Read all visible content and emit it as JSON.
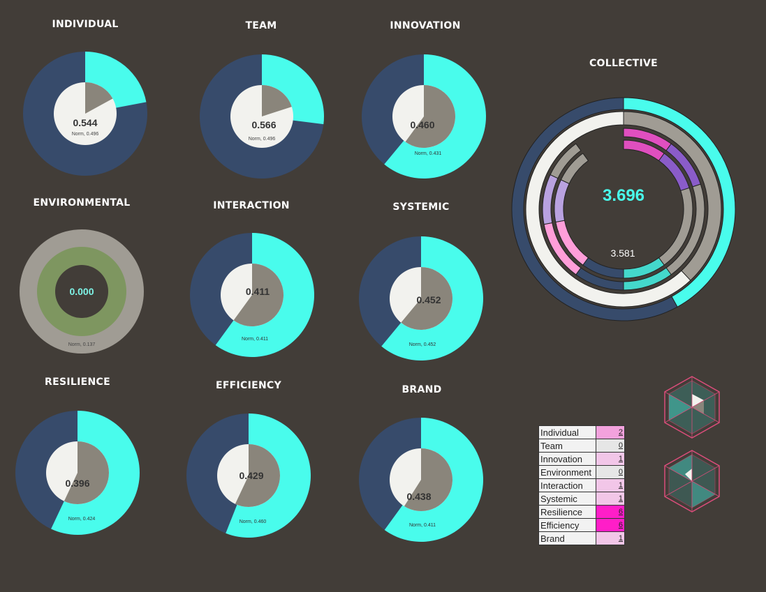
{
  "colors": {
    "background": "#423d38",
    "navy": "#374b6b",
    "cyan": "#49fcec",
    "taupe": "#8a857b",
    "white": "#f2f2ee",
    "olive": "#7e9660",
    "gray_ring": "#a09c94",
    "pink": "#ff9ed9",
    "magenta": "#e04fbf",
    "violet": "#8a5cc9",
    "lavender": "#b9a2e0",
    "teal": "#44d8cc"
  },
  "chart_data": [
    {
      "type": "pie",
      "title": "INDIVIDUAL",
      "value": "0.544",
      "norm": "Norm, 0.496",
      "outer_fraction": 0.22,
      "inner_fraction": 0.17
    },
    {
      "type": "pie",
      "title": "TEAM",
      "value": "0.566",
      "norm": "Norm, 0.496",
      "outer_fraction": 0.27,
      "inner_fraction": 0.2
    },
    {
      "type": "pie",
      "title": "INNOVATION",
      "value": "0.460",
      "norm": "Norm, 0.431",
      "outer_fraction": 0.61,
      "inner_fraction": 0.6
    },
    {
      "type": "pie",
      "title": "ENVIRONMENTAL",
      "value": "0.000",
      "norm": "Norm, 0.137",
      "outer_fraction": 0,
      "inner_fraction": 0
    },
    {
      "type": "pie",
      "title": "INTERACTION",
      "value": "0.411",
      "norm": "Norm, 0.411",
      "outer_fraction": 0.6,
      "inner_fraction": 0.6
    },
    {
      "type": "pie",
      "title": "SYSTEMIC",
      "value": "0.452",
      "norm": "Norm, 0.452",
      "outer_fraction": 0.61,
      "inner_fraction": 0.61
    },
    {
      "type": "pie",
      "title": "RESILIENCE",
      "value": "0.396",
      "norm": "Norm, 0.424",
      "outer_fraction": 0.57,
      "inner_fraction": 0.57
    },
    {
      "type": "pie",
      "title": "EFFICIENCY",
      "value": "0.429",
      "norm": "Norm, 0.460",
      "outer_fraction": 0.56,
      "inner_fraction": 0.57
    },
    {
      "type": "pie",
      "title": "BRAND",
      "value": "0.438",
      "norm": "Norm, 0.411",
      "outer_fraction": 0.6,
      "inner_fraction": 0.59
    },
    {
      "type": "pie",
      "title": "COLLECTIVE",
      "value": "3.696",
      "norm": "3.581",
      "rings": [
        {
          "name": "outer",
          "segments": [
            {
              "color": "cyan",
              "fraction": 0.42
            },
            {
              "color": "navy",
              "fraction": 0.58
            }
          ]
        },
        {
          "name": "second",
          "segments": [
            {
              "color": "gray_ring",
              "fraction": 0.38
            },
            {
              "color": "white",
              "fraction": 0.62
            }
          ]
        },
        {
          "name": "third",
          "segments": [
            {
              "color": "magenta",
              "fraction": 0.1
            },
            {
              "color": "violet",
              "fraction": 0.1
            },
            {
              "color": "gray_ring",
              "fraction": 0.2
            },
            {
              "color": "teal",
              "fraction": 0.1
            },
            {
              "color": "navy",
              "fraction": 0.1
            },
            {
              "color": "pink",
              "fraction": 0.12
            },
            {
              "color": "lavender",
              "fraction": 0.1
            },
            {
              "color": "gray_ring",
              "fraction": 0.08
            }
          ]
        },
        {
          "name": "fourth",
          "segments": [
            {
              "color": "magenta",
              "fraction": 0.1
            },
            {
              "color": "violet",
              "fraction": 0.1
            },
            {
              "color": "gray_ring",
              "fraction": 0.2
            },
            {
              "color": "teal",
              "fraction": 0.1
            },
            {
              "color": "navy",
              "fraction": 0.1
            },
            {
              "color": "pink",
              "fraction": 0.12
            },
            {
              "color": "lavender",
              "fraction": 0.1
            },
            {
              "color": "gray_ring",
              "fraction": 0.08
            }
          ]
        }
      ]
    }
  ],
  "legend": {
    "rows": [
      {
        "label": "Individual",
        "count": "2",
        "color": "#f3a2dd"
      },
      {
        "label": "Team",
        "count": "0",
        "color": "#e6e6e6"
      },
      {
        "label": "Innovation",
        "count": "1",
        "color": "#f2c6e8"
      },
      {
        "label": "Environment",
        "count": "0",
        "color": "#e6e6e6"
      },
      {
        "label": "Interaction",
        "count": "1",
        "color": "#f2c6e8"
      },
      {
        "label": "Systemic",
        "count": "1",
        "color": "#f2c6e8"
      },
      {
        "label": "Resilience",
        "count": "6",
        "color": "#ff1ec8"
      },
      {
        "label": "Efficiency",
        "count": "6",
        "color": "#ff1ec8"
      },
      {
        "label": "Brand",
        "count": "1",
        "color": "#f2c6e8"
      }
    ]
  },
  "icons": [
    "hexagon-cube-icon",
    "hexagon-cube-icon"
  ]
}
